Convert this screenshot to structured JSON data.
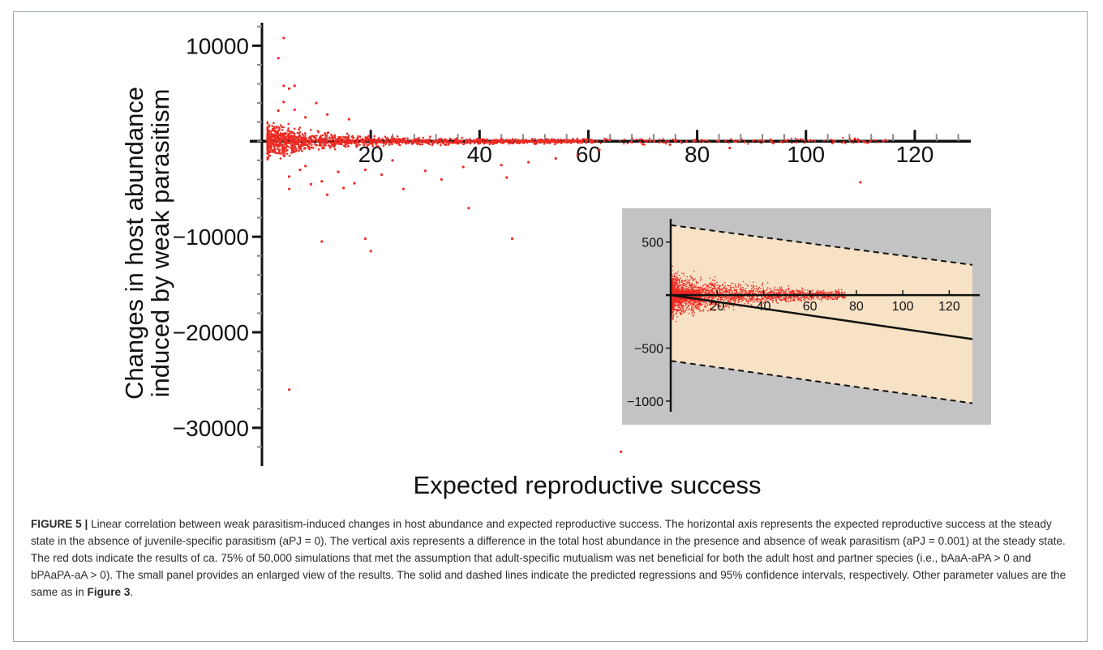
{
  "chart_data": [
    {
      "type": "scatter",
      "xlabel": "Expected reproductive success",
      "ylabel_line1": "Changes in host abundance",
      "ylabel_line2": "induced by weak parasitism",
      "xlim": [
        0,
        130
      ],
      "ylim": [
        -34000,
        13000
      ],
      "x_ticks": [
        20,
        40,
        60,
        80,
        100,
        120
      ],
      "y_ticks": [
        10000,
        -10000,
        -20000,
        -30000
      ],
      "x_tick_labels": [
        "20",
        "40",
        "60",
        "80",
        "100",
        "120"
      ],
      "y_tick_labels": [
        "10000",
        "−10000",
        "−20000",
        "−30000"
      ],
      "series": [
        {
          "color": "#ee2a24",
          "points": [
            [
              3,
              8700
            ],
            [
              4,
              10800
            ],
            [
              4,
              5800
            ],
            [
              5,
              5500
            ],
            [
              6,
              5800
            ],
            [
              4,
              4100
            ],
            [
              3,
              3200
            ],
            [
              6,
              3300
            ],
            [
              10,
              4000
            ],
            [
              12,
              2800
            ],
            [
              8,
              2500
            ],
            [
              16,
              2300
            ],
            [
              5,
              -3700
            ],
            [
              7,
              -3000
            ],
            [
              8,
              -2600
            ],
            [
              5,
              -5000
            ],
            [
              9,
              -4500
            ],
            [
              11,
              -4200
            ],
            [
              12,
              -5600
            ],
            [
              14,
              -3200
            ],
            [
              15,
              -4900
            ],
            [
              17,
              -4400
            ],
            [
              19,
              -3000
            ],
            [
              22,
              -3500
            ],
            [
              26,
              -5000
            ],
            [
              30,
              -3100
            ],
            [
              33,
              -4000
            ],
            [
              37,
              -2700
            ],
            [
              45,
              -3800
            ],
            [
              49,
              -2200
            ],
            [
              11,
              -10500
            ],
            [
              19,
              -10200
            ],
            [
              20,
              -11500
            ],
            [
              38,
              -7000
            ],
            [
              46,
              -10200
            ],
            [
              5,
              -26000
            ],
            [
              66,
              -32500
            ],
            [
              110,
              -4300
            ],
            [
              109,
              250
            ],
            [
              86,
              -700
            ],
            [
              75,
              -350
            ],
            [
              94,
              -200
            ],
            [
              70,
              -300
            ],
            [
              58,
              -1500
            ],
            [
              62,
              -900
            ],
            [
              54,
              -1800
            ],
            [
              44,
              -2500
            ],
            [
              24,
              -2000
            ]
          ]
        }
      ]
    },
    {
      "type": "scatter",
      "inset": true,
      "xlim": [
        0,
        130
      ],
      "ylim": [
        -1100,
        750
      ],
      "x_ticks": [
        20,
        40,
        60,
        80,
        100,
        120
      ],
      "y_ticks": [
        500,
        -500,
        -1000
      ],
      "x_tick_labels": [
        "20",
        "40",
        "60",
        "80",
        "100",
        "120"
      ],
      "y_tick_labels": [
        "500",
        "−500",
        "−1000"
      ],
      "regression": {
        "y_at_0": 0,
        "y_at_130": -415
      },
      "ci_upper": {
        "y_at_0": 660,
        "y_at_130": 285
      },
      "ci_lower": {
        "y_at_0": -620,
        "y_at_130": -1020
      },
      "colors": {
        "background": "#c3c3c5",
        "band": "#f7e2c5",
        "points": "#ee2a24"
      }
    }
  ],
  "caption": {
    "label": "FIGURE 5 |",
    "text": "Linear correlation between weak parasitism-induced changes in host abundance and expected reproductive success. The horizontal axis represents the expected reproductive success at the steady state in the absence of juvenile-specific parasitism (aPJ = 0). The vertical axis represents a difference in the total host abundance in the presence and absence of weak parasitism (aPJ = 0.001) at the steady state. The red dots indicate the results of ca. 75% of 50,000 simulations that met the assumption that adult-specific mutualism was net beneficial for both the adult host and partner species (i.e., bAaA-aPA > 0 and bPAaPA-aA > 0). The small panel provides an enlarged view of the results. The solid and dashed lines indicate the predicted regressions and 95% confidence intervals, respectively. Other parameter values are the same as in",
    "ref": "Figure 3",
    "end": "."
  }
}
